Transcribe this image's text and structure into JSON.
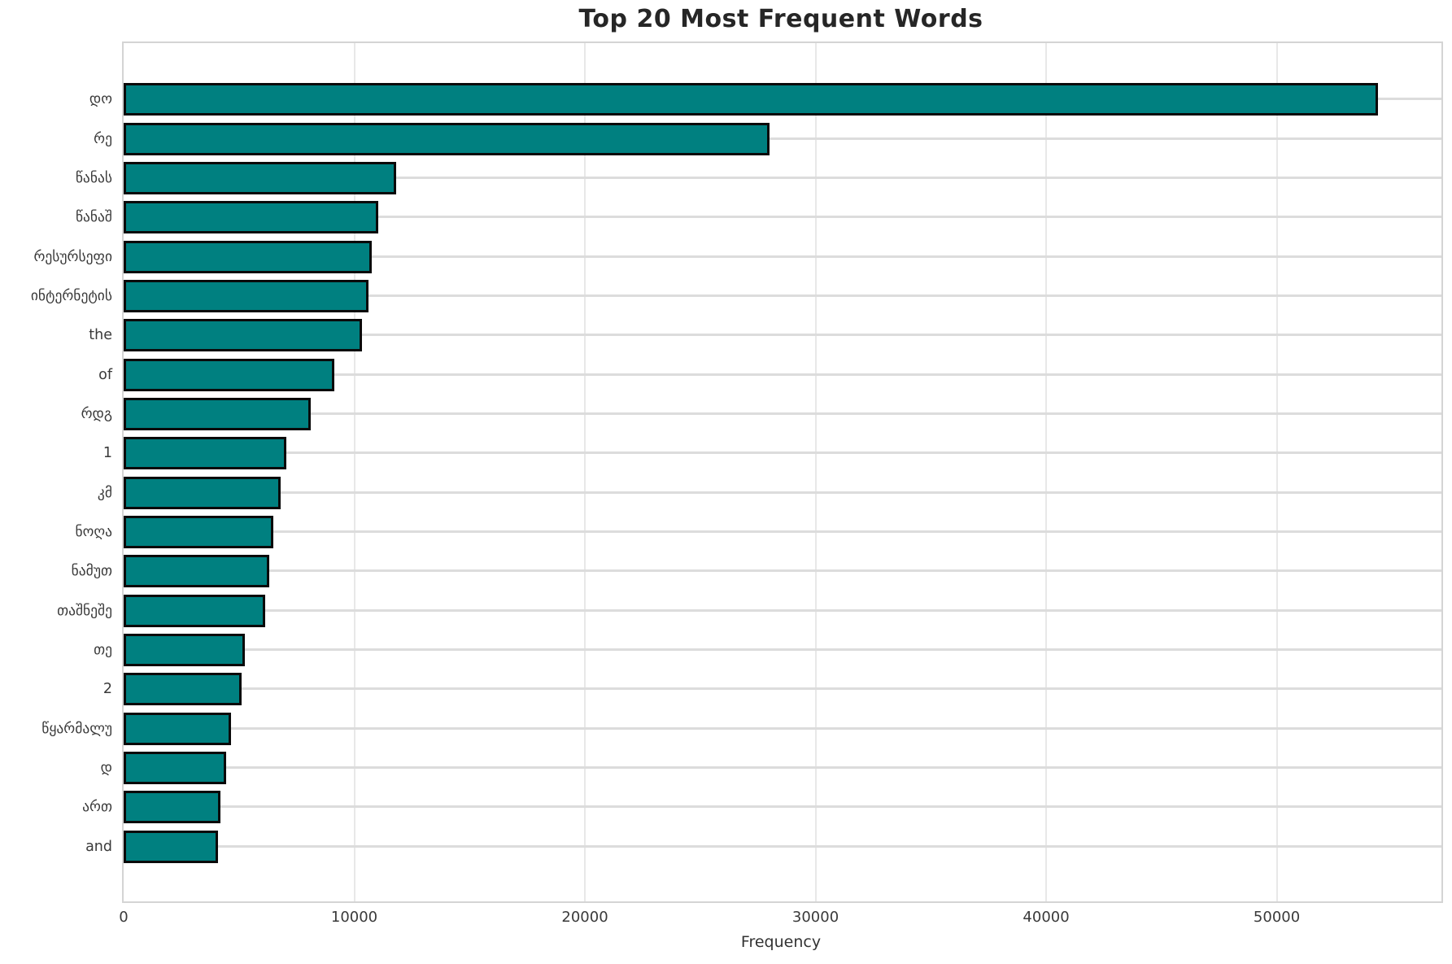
{
  "chart_data": {
    "type": "bar",
    "orientation": "horizontal",
    "title": "Top 20 Most Frequent Words",
    "xlabel": "Frequency",
    "ylabel": "",
    "categories": [
      "დო",
      "რე",
      "წანას",
      "წანაშ",
      "რესურსეფი",
      "ინტერნეტის",
      "the",
      "of",
      "რდგ",
      "1",
      "კმ",
      "ნოღა",
      "ნამუთ",
      "თაშნეშე",
      "თე",
      "2",
      "წყარმალუ",
      "დ",
      "ართ",
      "and"
    ],
    "values": [
      54400,
      28000,
      11800,
      11050,
      10750,
      10600,
      10350,
      9150,
      8100,
      7050,
      6800,
      6500,
      6300,
      6150,
      5250,
      5100,
      4650,
      4450,
      4200,
      4100
    ],
    "xlim": [
      0,
      57140
    ],
    "xticks": [
      0,
      10000,
      20000,
      30000,
      40000,
      50000
    ],
    "xtick_labels": [
      "0",
      "10000",
      "20000",
      "30000",
      "40000",
      "50000"
    ],
    "grid": true,
    "legend": false,
    "bar_color": "#008080",
    "bar_edge_color": "#0a0a0a",
    "background_color": "#ffffff",
    "gridline_color": "#e0e0e0"
  }
}
